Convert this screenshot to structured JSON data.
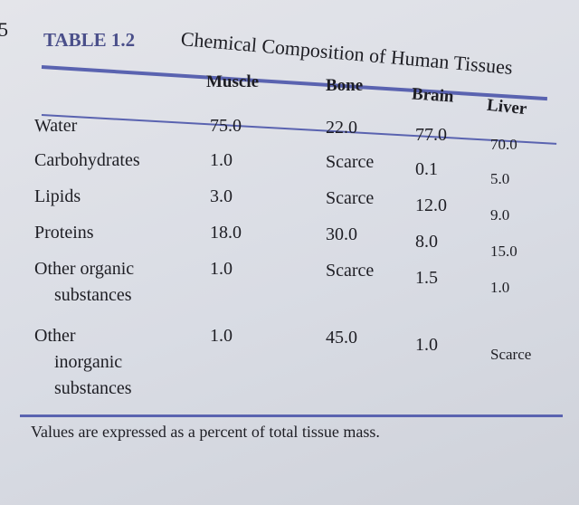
{
  "margin_mark": "5",
  "table": {
    "label": "TABLE 1.2",
    "title": "Chemical Composition of Human Tissues",
    "columns": [
      "Muscle",
      "Bone",
      "Brain",
      "Liver"
    ],
    "rows": [
      {
        "label": [
          "Water"
        ],
        "values": [
          "75.0",
          "22.0",
          "77.0",
          "70.0"
        ]
      },
      {
        "label": [
          "Carbohydrates"
        ],
        "values": [
          "1.0",
          "Scarce",
          "0.1",
          "5.0"
        ]
      },
      {
        "label": [
          "Lipids"
        ],
        "values": [
          "3.0",
          "Scarce",
          "12.0",
          "9.0"
        ]
      },
      {
        "label": [
          "Proteins"
        ],
        "values": [
          "18.0",
          "30.0",
          "8.0",
          "15.0"
        ]
      },
      {
        "label": [
          "Other organic",
          "substances"
        ],
        "values": [
          "1.0",
          "Scarce",
          "1.5",
          "1.0"
        ]
      },
      {
        "label": [
          "Other",
          "inorganic",
          "substances"
        ],
        "values": [
          "1.0",
          "45.0",
          "1.0",
          "Scarce"
        ]
      }
    ],
    "footnote": "Values are expressed as a percent of total tissue mass."
  },
  "colors": {
    "rule": "#5a63b0",
    "label": "#4a4f8a"
  }
}
